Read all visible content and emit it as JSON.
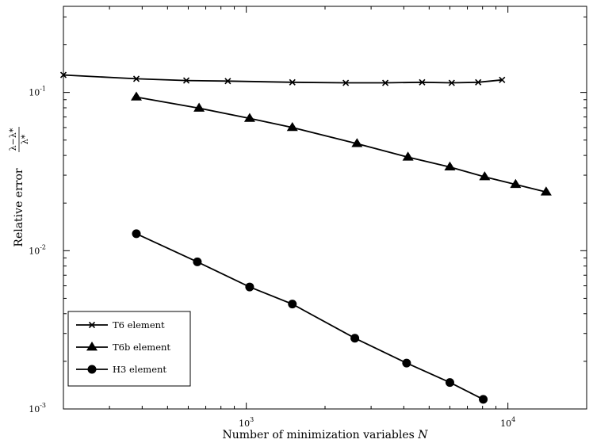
{
  "chart_data": {
    "type": "line",
    "x_scale": "log",
    "y_scale": "log",
    "xlim": [
      200,
      20000
    ],
    "ylim": [
      0.001,
      0.35
    ],
    "xlabel": "Number of minimization variables ",
    "xlabel_var": "N",
    "ylabel": "Relative error ",
    "ylabel_numerator": "λ−λ*",
    "ylabel_denominator": "λ*",
    "x_ticks": [
      {
        "value": 1000,
        "base": "10",
        "exp": "3"
      },
      {
        "value": 10000,
        "base": "10",
        "exp": "4"
      }
    ],
    "y_ticks": [
      {
        "value": 0.001,
        "base": "10",
        "exp": "-3"
      },
      {
        "value": 0.01,
        "base": "10",
        "exp": "-2"
      },
      {
        "value": 0.1,
        "base": "10",
        "exp": "-1"
      }
    ],
    "grid": false,
    "legend_position": "bottom-left",
    "series": [
      {
        "name": "T6 element",
        "marker": "x",
        "color": "#000000",
        "x": [
          200,
          380,
          590,
          850,
          1500,
          2400,
          3400,
          4700,
          6100,
          7700,
          9500
        ],
        "y": [
          0.129,
          0.122,
          0.119,
          0.118,
          0.116,
          0.115,
          0.115,
          0.116,
          0.115,
          0.116,
          0.12
        ]
      },
      {
        "name": "T6b element",
        "marker": "triangle",
        "color": "#000000",
        "x": [
          380,
          660,
          1030,
          1500,
          2650,
          4150,
          6000,
          8150,
          10700,
          14000
        ],
        "y": [
          0.0935,
          0.0795,
          0.0685,
          0.06,
          0.0475,
          0.039,
          0.0338,
          0.0293,
          0.0262,
          0.0235
        ]
      },
      {
        "name": "H3 element",
        "marker": "circle",
        "color": "#000000",
        "x": [
          380,
          650,
          1030,
          1500,
          2600,
          4100,
          6000,
          8050
        ],
        "y": [
          0.0128,
          0.0085,
          0.0059,
          0.0046,
          0.0028,
          0.00195,
          0.00147,
          0.00115
        ]
      }
    ]
  }
}
